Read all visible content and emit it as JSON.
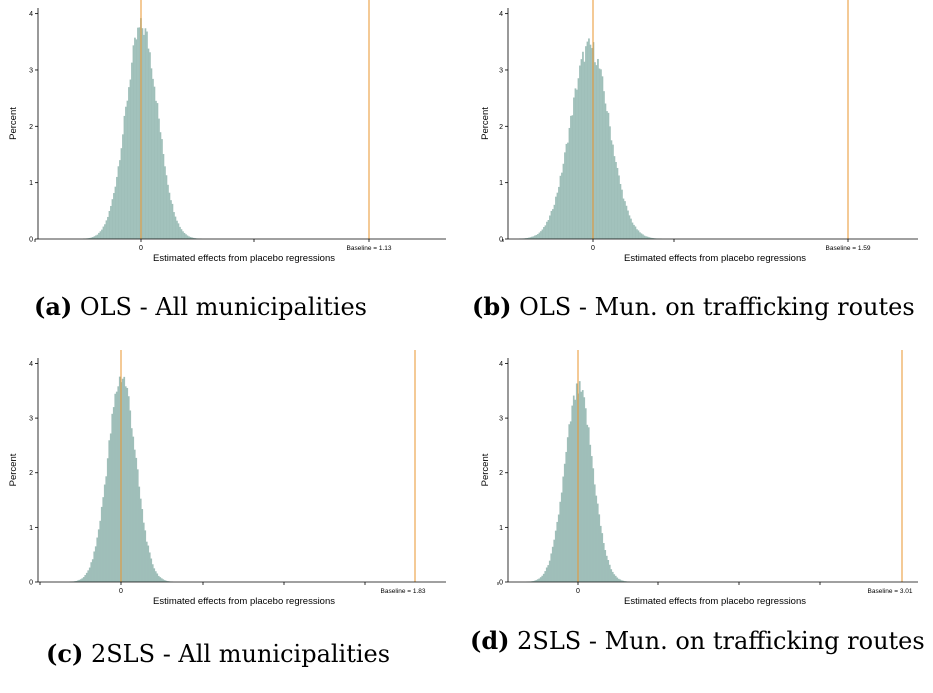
{
  "chart_data": [
    {
      "type": "histogram",
      "panel": "a",
      "caption_letter": "(a)",
      "caption_text": "OLS - All municipalities",
      "xlabel": "Estimated effects from placebo regressions",
      "ylabel": "Percent",
      "x_tick_labels": [
        "0"
      ],
      "y_ticks": [
        0,
        1,
        2,
        3,
        4
      ],
      "ylim": [
        0,
        4.1
      ],
      "peak": 3.8,
      "baseline_value": 1.13,
      "baseline_label": "Baseline = 1.13",
      "bar_color": "#9fbfb9",
      "line_color": "#e8962e"
    },
    {
      "type": "histogram",
      "panel": "b",
      "caption_letter": "(b)",
      "caption_text": "OLS - Mun. on trafficking routes",
      "xlabel": "Estimated effects from placebo regressions",
      "ylabel": "Percent",
      "x_tick_labels": [
        "0"
      ],
      "y_ticks": [
        0,
        1,
        2,
        3,
        4
      ],
      "ylim": [
        0,
        4.1
      ],
      "peak": 3.45,
      "baseline_value": 1.59,
      "baseline_label": "Baseline = 1.59",
      "bar_color": "#9fbfb9",
      "line_color": "#e8962e"
    },
    {
      "type": "histogram",
      "panel": "c",
      "caption_letter": "(c)",
      "caption_text": "2SLS - All municipalities",
      "xlabel": "Estimated effects from placebo regressions",
      "ylabel": "Percent",
      "x_tick_labels": [
        "0"
      ],
      "y_ticks": [
        0,
        1,
        2,
        3,
        4
      ],
      "ylim": [
        0,
        4.1
      ],
      "peak": 3.8,
      "baseline_value": 1.83,
      "baseline_label": "Baseline = 1.83",
      "bar_color": "#9fbfb9",
      "line_color": "#e8962e"
    },
    {
      "type": "histogram",
      "panel": "d",
      "caption_letter": "(d)",
      "caption_text": "2SLS - Mun. on trafficking routes",
      "xlabel": "Estimated effects from placebo regressions",
      "ylabel": "Percent",
      "x_tick_labels": [
        "0"
      ],
      "y_ticks": [
        0,
        1,
        2,
        3,
        4
      ],
      "ylim": [
        0,
        4.1
      ],
      "peak": 3.55,
      "baseline_value": 3.01,
      "baseline_label": "Baseline = 3.01",
      "bar_color": "#9fbfb9",
      "line_color": "#e8962e"
    }
  ]
}
